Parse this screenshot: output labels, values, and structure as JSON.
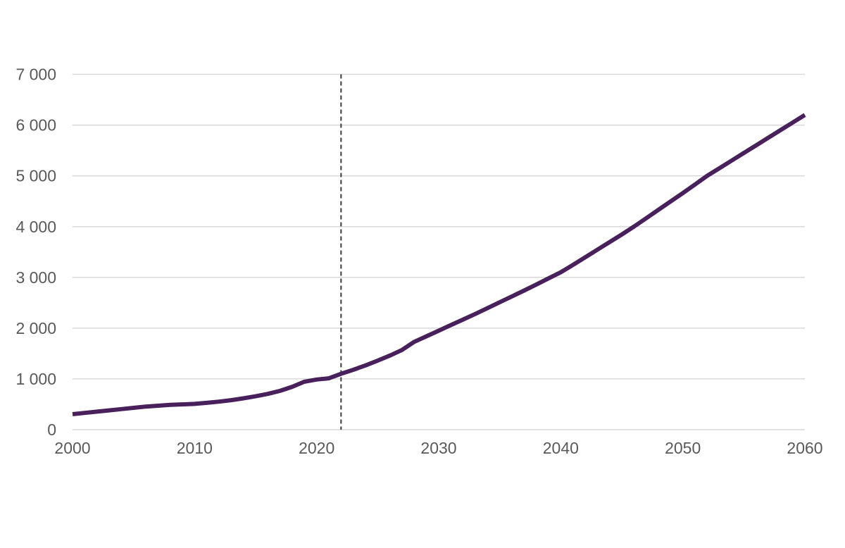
{
  "chart_data": {
    "type": "line",
    "title": "",
    "xlabel": "",
    "ylabel": "",
    "xlim": [
      2000,
      2060
    ],
    "ylim": [
      0,
      7000
    ],
    "grid": "horizontal",
    "legend": "none",
    "x_ticks": [
      2000,
      2010,
      2020,
      2030,
      2040,
      2050,
      2060
    ],
    "x_tick_labels": [
      "2000",
      "2010",
      "2020",
      "2030",
      "2040",
      "2050",
      "2060"
    ],
    "y_ticks": [
      0,
      1000,
      2000,
      3000,
      4000,
      5000,
      6000,
      7000
    ],
    "y_tick_labels": [
      "0",
      "1 000",
      "2 000",
      "3 000",
      "4 000",
      "5 000",
      "6 000",
      "7 000"
    ],
    "series": [
      {
        "name": "main-series",
        "color": "#48205C",
        "x": [
          2000,
          2001,
          2002,
          2003,
          2004,
          2005,
          2006,
          2007,
          2008,
          2009,
          2010,
          2011,
          2012,
          2013,
          2014,
          2015,
          2016,
          2017,
          2018,
          2019,
          2020,
          2021,
          2022,
          2023,
          2024,
          2025,
          2026,
          2027,
          2028,
          2029,
          2030,
          2031,
          2032,
          2033,
          2034,
          2035,
          2036,
          2037,
          2038,
          2039,
          2040,
          2041,
          2042,
          2043,
          2044,
          2045,
          2046,
          2047,
          2048,
          2049,
          2050,
          2051,
          2052,
          2053,
          2054,
          2055,
          2056,
          2057,
          2058,
          2059,
          2060
        ],
        "values": [
          305,
          330,
          355,
          380,
          405,
          430,
          455,
          472,
          488,
          498,
          508,
          528,
          552,
          582,
          618,
          658,
          705,
          765,
          845,
          945,
          988,
          1012,
          1100,
          1180,
          1265,
          1360,
          1460,
          1570,
          1730,
          1840,
          1950,
          2060,
          2170,
          2280,
          2395,
          2510,
          2625,
          2740,
          2860,
          2980,
          3100,
          3245,
          3395,
          3545,
          3695,
          3845,
          4000,
          4165,
          4330,
          4495,
          4660,
          4830,
          5000,
          5150,
          5300,
          5450,
          5600,
          5750,
          5900,
          6050,
          6200
        ]
      }
    ],
    "annotations": [
      {
        "type": "vline",
        "x": 2022,
        "style": "dashed",
        "color": "#3C3C3C"
      }
    ],
    "colors": {
      "background": "#FFFFFF",
      "gridline": "#D9D9D9",
      "tick_label": "#595959",
      "line": "#48205C",
      "divider": "#3C3C3C"
    }
  }
}
